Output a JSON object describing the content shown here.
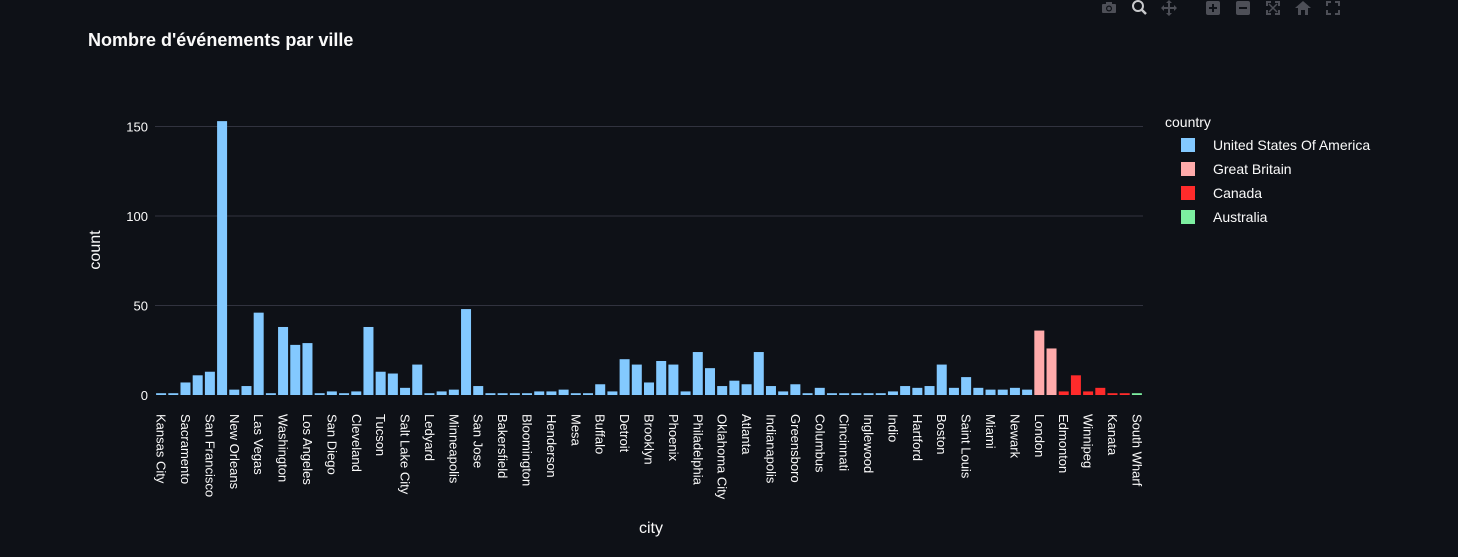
{
  "modebar": {
    "buttons": [
      {
        "name": "camera-icon",
        "icon": "camera"
      },
      {
        "name": "zoom-icon",
        "icon": "zoom"
      },
      {
        "name": "pan-icon",
        "icon": "pan"
      },
      {
        "name": "zoom-in-icon",
        "icon": "plus"
      },
      {
        "name": "zoom-out-icon",
        "icon": "minus"
      },
      {
        "name": "autoscale-icon",
        "icon": "autoscale"
      },
      {
        "name": "reset-axes-icon",
        "icon": "home"
      },
      {
        "name": "fullscreen-icon",
        "icon": "fullscreen"
      }
    ]
  },
  "chart_data": {
    "type": "bar",
    "title": "Nombre d'événements par ville",
    "xlabel": "city",
    "ylabel": "count",
    "ylim": [
      0,
      160
    ],
    "yticks": [
      0,
      50,
      100,
      150
    ],
    "grid": true,
    "legend": {
      "title": "country",
      "placement": "right",
      "entries": [
        {
          "name": "United States Of America",
          "color": "#83c9ff"
        },
        {
          "name": "Great Britain",
          "color": "#ffabab"
        },
        {
          "name": "Canada",
          "color": "#ff2b2b"
        },
        {
          "name": "Australia",
          "color": "#7defa1"
        }
      ]
    },
    "colors": {
      "United States Of America": "#83c9ff",
      "Great Britain": "#ffabab",
      "Canada": "#ff2b2b",
      "Australia": "#7defa1"
    },
    "labeled_categories": [
      "Kansas City",
      "Sacramento",
      "San Francisco",
      "New Orleans",
      "Las Vegas",
      "Washington",
      "Los Angeles",
      "San Diego",
      "Cleveland",
      "Tucson",
      "Salt Lake City",
      "Ledyard",
      "Minneapolis",
      "San Jose",
      "Bakersfield",
      "Bloomington",
      "Henderson",
      "Mesa",
      "Buffalo",
      "Detroit",
      "Brooklyn",
      "Phoenix",
      "Philadelphia",
      "Oklahoma City",
      "Atlanta",
      "Indianapolis",
      "Greensboro",
      "Columbus",
      "Cincinnati",
      "Inglewood",
      "Indio",
      "Hartford",
      "Boston",
      "Saint Louis",
      "Miami",
      "Newark",
      "London",
      "Edmonton",
      "Winnipeg",
      "Kanata",
      "South Wharf"
    ],
    "bars": [
      {
        "country": "United States Of America",
        "value": 1,
        "label": "Kansas City"
      },
      {
        "country": "United States Of America",
        "value": 1
      },
      {
        "country": "United States Of America",
        "value": 7,
        "label": "Sacramento"
      },
      {
        "country": "United States Of America",
        "value": 11
      },
      {
        "country": "United States Of America",
        "value": 13,
        "label": "San Francisco"
      },
      {
        "country": "United States Of America",
        "value": 153
      },
      {
        "country": "United States Of America",
        "value": 3,
        "label": "New Orleans"
      },
      {
        "country": "United States Of America",
        "value": 5
      },
      {
        "country": "United States Of America",
        "value": 46,
        "label": "Las Vegas"
      },
      {
        "country": "United States Of America",
        "value": 1
      },
      {
        "country": "United States Of America",
        "value": 38,
        "label": "Washington"
      },
      {
        "country": "United States Of America",
        "value": 28
      },
      {
        "country": "United States Of America",
        "value": 29,
        "label": "Los Angeles"
      },
      {
        "country": "United States Of America",
        "value": 1
      },
      {
        "country": "United States Of America",
        "value": 2,
        "label": "San Diego"
      },
      {
        "country": "United States Of America",
        "value": 1
      },
      {
        "country": "United States Of America",
        "value": 2,
        "label": "Cleveland"
      },
      {
        "country": "United States Of America",
        "value": 38
      },
      {
        "country": "United States Of America",
        "value": 13,
        "label": "Tucson"
      },
      {
        "country": "United States Of America",
        "value": 12
      },
      {
        "country": "United States Of America",
        "value": 4,
        "label": "Salt Lake City"
      },
      {
        "country": "United States Of America",
        "value": 17
      },
      {
        "country": "United States Of America",
        "value": 1,
        "label": "Ledyard"
      },
      {
        "country": "United States Of America",
        "value": 2
      },
      {
        "country": "United States Of America",
        "value": 3,
        "label": "Minneapolis"
      },
      {
        "country": "United States Of America",
        "value": 48
      },
      {
        "country": "United States Of America",
        "value": 5,
        "label": "San Jose"
      },
      {
        "country": "United States Of America",
        "value": 1
      },
      {
        "country": "United States Of America",
        "value": 1,
        "label": "Bakersfield"
      },
      {
        "country": "United States Of America",
        "value": 1
      },
      {
        "country": "United States Of America",
        "value": 1,
        "label": "Bloomington"
      },
      {
        "country": "United States Of America",
        "value": 2
      },
      {
        "country": "United States Of America",
        "value": 2,
        "label": "Henderson"
      },
      {
        "country": "United States Of America",
        "value": 3
      },
      {
        "country": "United States Of America",
        "value": 1,
        "label": "Mesa"
      },
      {
        "country": "United States Of America",
        "value": 1
      },
      {
        "country": "United States Of America",
        "value": 6,
        "label": "Buffalo"
      },
      {
        "country": "United States Of America",
        "value": 2
      },
      {
        "country": "United States Of America",
        "value": 20,
        "label": "Detroit"
      },
      {
        "country": "United States Of America",
        "value": 17
      },
      {
        "country": "United States Of America",
        "value": 7,
        "label": "Brooklyn"
      },
      {
        "country": "United States Of America",
        "value": 19
      },
      {
        "country": "United States Of America",
        "value": 17,
        "label": "Phoenix"
      },
      {
        "country": "United States Of America",
        "value": 2
      },
      {
        "country": "United States Of America",
        "value": 24,
        "label": "Philadelphia"
      },
      {
        "country": "United States Of America",
        "value": 15
      },
      {
        "country": "United States Of America",
        "value": 5,
        "label": "Oklahoma City"
      },
      {
        "country": "United States Of America",
        "value": 8
      },
      {
        "country": "United States Of America",
        "value": 6,
        "label": "Atlanta"
      },
      {
        "country": "United States Of America",
        "value": 24
      },
      {
        "country": "United States Of America",
        "value": 5,
        "label": "Indianapolis"
      },
      {
        "country": "United States Of America",
        "value": 2
      },
      {
        "country": "United States Of America",
        "value": 6,
        "label": "Greensboro"
      },
      {
        "country": "United States Of America",
        "value": 1
      },
      {
        "country": "United States Of America",
        "value": 4,
        "label": "Columbus"
      },
      {
        "country": "United States Of America",
        "value": 1
      },
      {
        "country": "United States Of America",
        "value": 1,
        "label": "Cincinnati"
      },
      {
        "country": "United States Of America",
        "value": 1
      },
      {
        "country": "United States Of America",
        "value": 1,
        "label": "Inglewood"
      },
      {
        "country": "United States Of America",
        "value": 1
      },
      {
        "country": "United States Of America",
        "value": 2,
        "label": "Indio"
      },
      {
        "country": "United States Of America",
        "value": 5
      },
      {
        "country": "United States Of America",
        "value": 4,
        "label": "Hartford"
      },
      {
        "country": "United States Of America",
        "value": 5
      },
      {
        "country": "United States Of America",
        "value": 17,
        "label": "Boston"
      },
      {
        "country": "United States Of America",
        "value": 4
      },
      {
        "country": "United States Of America",
        "value": 10,
        "label": "Saint Louis"
      },
      {
        "country": "United States Of America",
        "value": 4
      },
      {
        "country": "United States Of America",
        "value": 3,
        "label": "Miami"
      },
      {
        "country": "United States Of America",
        "value": 3
      },
      {
        "country": "United States Of America",
        "value": 4,
        "label": "Newark"
      },
      {
        "country": "United States Of America",
        "value": 3
      },
      {
        "country": "Great Britain",
        "value": 36,
        "label": "London"
      },
      {
        "country": "Great Britain",
        "value": 26
      },
      {
        "country": "Canada",
        "value": 2,
        "label": "Edmonton"
      },
      {
        "country": "Canada",
        "value": 11
      },
      {
        "country": "Canada",
        "value": 2,
        "label": "Winnipeg"
      },
      {
        "country": "Canada",
        "value": 4
      },
      {
        "country": "Canada",
        "value": 1,
        "label": "Kanata"
      },
      {
        "country": "Canada",
        "value": 1
      },
      {
        "country": "Australia",
        "value": 1,
        "label": "South Wharf"
      }
    ]
  }
}
